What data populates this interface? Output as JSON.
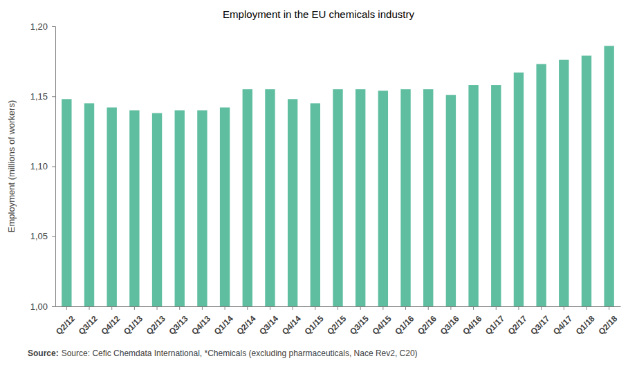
{
  "chart_data": {
    "type": "bar",
    "title": "Employment in the EU chemicals industry",
    "y_label": "Employment (millions of workers)",
    "source_label": "Source:",
    "source": "Source: Cefic Chemdata International, *Chemicals (excluding pharmaceuticals, Nace Rev2, C20)",
    "categories": [
      "Q2/12",
      "Q3/12",
      "Q4/12",
      "Q1/13",
      "Q2/13",
      "Q3/13",
      "Q4/13",
      "Q1/14",
      "Q2/14",
      "Q3/14",
      "Q4/14",
      "Q1/15",
      "Q2/15",
      "Q3/15",
      "Q4/15",
      "Q1/16",
      "Q2/16",
      "Q3/16",
      "Q4/16",
      "Q1/17",
      "Q2/17",
      "Q3/17",
      "Q4/17",
      "Q1/18",
      "Q2/18"
    ],
    "values": [
      1.148,
      1.145,
      1.142,
      1.14,
      1.138,
      1.14,
      1.14,
      1.142,
      1.155,
      1.155,
      1.148,
      1.145,
      1.155,
      1.155,
      1.154,
      1.155,
      1.155,
      1.151,
      1.158,
      1.158,
      1.167,
      1.173,
      1.176,
      1.179,
      1.186
    ],
    "color": "#5fbea0",
    "ylim": [
      1.0,
      1.2
    ],
    "yticks": [
      {
        "value": 1.0,
        "label": "1,00"
      },
      {
        "value": 1.05,
        "label": "1,05"
      },
      {
        "value": 1.1,
        "label": "1,10"
      },
      {
        "value": 1.15,
        "label": "1,15"
      },
      {
        "value": 1.2,
        "label": "1,20"
      }
    ],
    "grid": false
  }
}
